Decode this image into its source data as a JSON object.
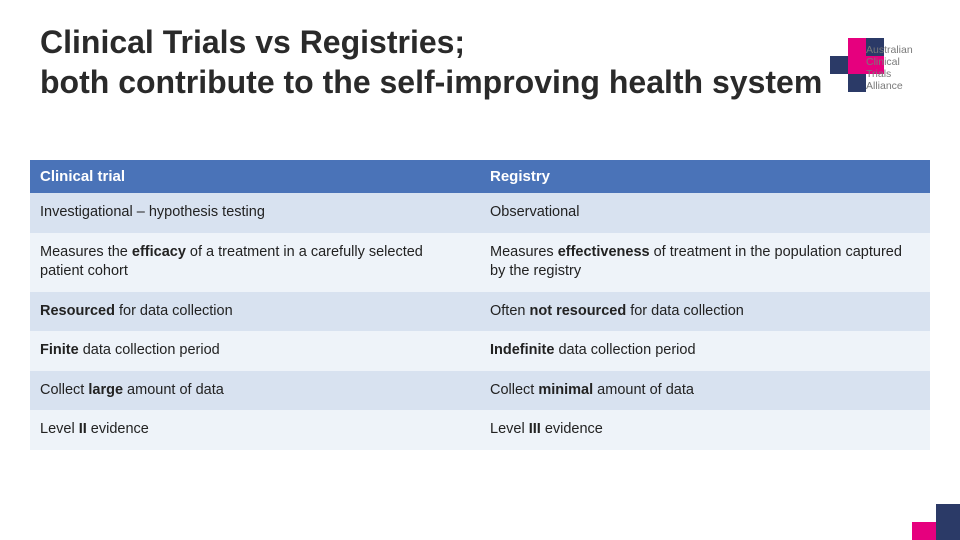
{
  "title_line1": "Clinical Trials vs Registries;",
  "title_line2": "both contribute to the self-improving  health system",
  "logo": {
    "text_l1": "Australian",
    "text_l2": "Clinical",
    "text_l3": "Trials",
    "text_l4": "Alliance",
    "color_pink": "#e6007e",
    "color_navy": "#2b3a67",
    "text_color": "#7a7a7a"
  },
  "accent_colors": {
    "pink": "#e6007e",
    "navy": "#2b3a67"
  },
  "table": {
    "header_bg": "#4a73b8",
    "band_a": "#d8e2f0",
    "band_b": "#eef3f9",
    "col_left_header": "Clinical trial",
    "col_right_header": "Registry",
    "rows": [
      {
        "band": "a",
        "left_html": "Investigational – hypothesis testing",
        "right_html": "Observational"
      },
      {
        "band": "b",
        "left_html": "Measures the <b>efficacy</b> of a treatment in a carefully selected patient cohort",
        "right_html": "Measures <b>effectiveness</b> of treatment in the population captured by the registry"
      },
      {
        "band": "a",
        "left_html": "<b>Resourced</b> for data collection",
        "right_html": "Often <b>not resourced</b> for data collection"
      },
      {
        "band": "b",
        "left_html": "<b>Finite</b> data collection period",
        "right_html": "<b>Indefinite</b> data collection period"
      },
      {
        "band": "a",
        "left_html": "Collect <b>large</b> amount of data",
        "right_html": "Collect <b>minimal</b> amount of data"
      },
      {
        "band": "b",
        "left_html": "Level <b>II</b> evidence",
        "right_html": "Level <b>III</b> evidence"
      }
    ]
  }
}
